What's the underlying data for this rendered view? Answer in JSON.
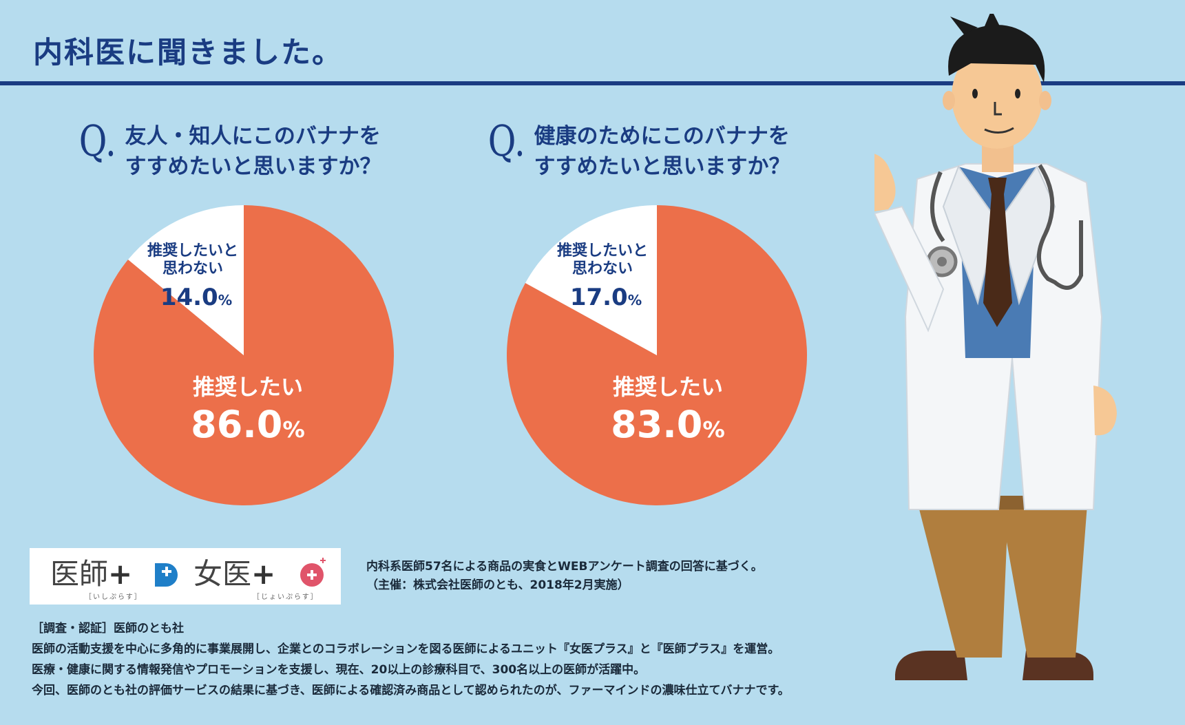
{
  "page": {
    "title": "内科医に聞きました。"
  },
  "questions": [
    {
      "q_mark": "Q.",
      "line1": "友人・知人にこのバナナを",
      "line2": "すすめたいと思いますか？"
    },
    {
      "q_mark": "Q.",
      "line1": "健康のためにこのバナナを",
      "line2": "すすめたいと思いますか？"
    }
  ],
  "chart_data": [
    {
      "type": "pie",
      "slices": [
        {
          "label": "推奨したい",
          "value": 86.0,
          "display": "86.0",
          "unit": "%",
          "color": "#ec6f4a"
        },
        {
          "label_lines": [
            "推奨したいと",
            "思わない"
          ],
          "value": 14.0,
          "display": "14.0",
          "unit": "%",
          "color": "#ffffff"
        }
      ]
    },
    {
      "type": "pie",
      "slices": [
        {
          "label": "推奨したい",
          "value": 83.0,
          "display": "83.0",
          "unit": "%",
          "color": "#ec6f4a"
        },
        {
          "label_lines": [
            "推奨したいと",
            "思わない"
          ],
          "value": 17.0,
          "display": "17.0",
          "unit": "%",
          "color": "#ffffff"
        }
      ]
    }
  ],
  "logos": [
    {
      "name": "医師",
      "sub": "［いしぷらす］",
      "accent": "#1f7fc8"
    },
    {
      "name": "女医",
      "sub": "［じょいぷらす］",
      "accent": "#e0546a"
    }
  ],
  "survey_note": {
    "line1": "内科系医師57名による商品の実食とWEBアンケート調査の回答に基づく。",
    "line2": "（主催：株式会社医師のとも、2018年2月実施）"
  },
  "footer": {
    "heading": "［調査・認証］医師のとも社",
    "lines": [
      "医師の活動支援を中心に多角的に事業展開し、企業とのコラボレーションを図る医師によるユニット『女医プラス』と『医師プラス』を運営。",
      "医療・健康に関する情報発信やプロモーションを支援し、現在、20以上の診療科目で、300名以上の医師が活躍中。",
      "今回、医師のとも社の評価サービスの結果に基づき、医師による確認済み商品として認められたのが、ファーマインドの濃味仕立てバナナです。"
    ]
  },
  "colors": {
    "background": "#b6dcee",
    "navy": "#1a3c82",
    "pie_main": "#ec6f4a",
    "pie_minor": "#ffffff"
  }
}
